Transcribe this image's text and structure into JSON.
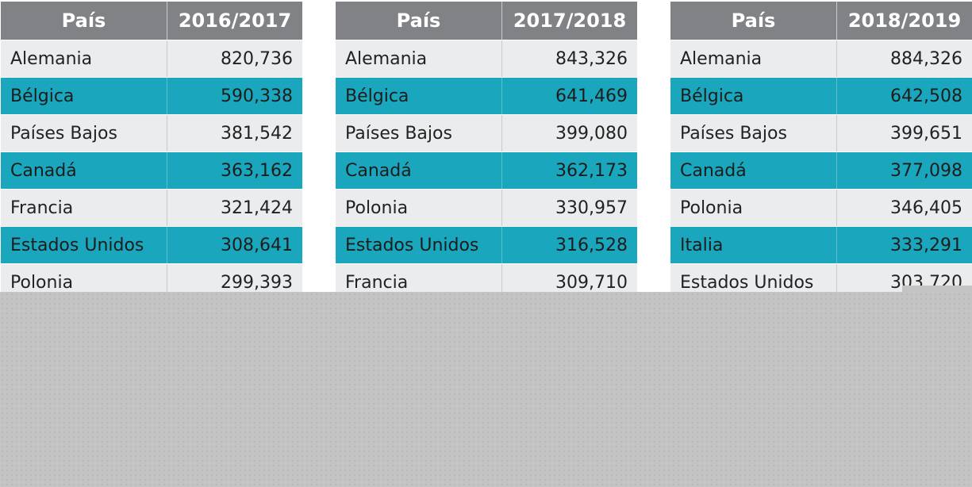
{
  "tables": [
    {
      "header": {
        "country": "País",
        "period": "2016/2017"
      },
      "rows": [
        {
          "country": "Alemania",
          "value": "820,736"
        },
        {
          "country": "Bélgica",
          "value": "590,338"
        },
        {
          "country": "Países Bajos",
          "value": "381,542"
        },
        {
          "country": "Canadá",
          "value": "363,162"
        },
        {
          "country": "Francia",
          "value": "321,424"
        },
        {
          "country": "Estados Unidos",
          "value": "308,641"
        },
        {
          "country": "Polonia",
          "value": "299,393"
        }
      ]
    },
    {
      "header": {
        "country": "País",
        "period": "2017/2018"
      },
      "rows": [
        {
          "country": "Alemania",
          "value": "843,326"
        },
        {
          "country": "Bélgica",
          "value": "641,469"
        },
        {
          "country": "Países Bajos",
          "value": "399,080"
        },
        {
          "country": "Canadá",
          "value": "362,173"
        },
        {
          "country": "Polonia",
          "value": "330,957"
        },
        {
          "country": "Estados Unidos",
          "value": "316,528"
        },
        {
          "country": "Francia",
          "value": "309,710"
        }
      ]
    },
    {
      "header": {
        "country": "País",
        "period": "2018/2019"
      },
      "rows": [
        {
          "country": "Alemania",
          "value": "884,326"
        },
        {
          "country": "Bélgica",
          "value": "642,508"
        },
        {
          "country": "Países Bajos",
          "value": "399,651"
        },
        {
          "country": "Canadá",
          "value": "377,098"
        },
        {
          "country": "Polonia",
          "value": "346,405"
        },
        {
          "country": "Italia",
          "value": "333,291"
        },
        {
          "country": "Estados Unidos",
          "value": "303,720"
        }
      ]
    }
  ],
  "colors": {
    "header_bg": "#818285",
    "row_light": "#ebecee",
    "row_teal": "#1aa6bc",
    "overlay": "#c4c4c5"
  }
}
